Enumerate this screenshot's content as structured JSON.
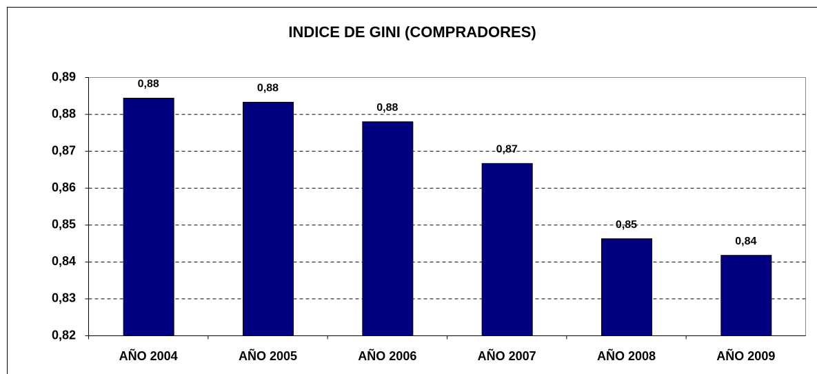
{
  "chart_data": {
    "type": "bar",
    "title": "INDICE DE GINI (COMPRADORES)",
    "categories": [
      "AÑO 2004",
      "AÑO 2005",
      "AÑO 2006",
      "AÑO 2007",
      "AÑO 2008",
      "AÑO 2009"
    ],
    "values": [
      0.8844,
      0.8833,
      0.878,
      0.8667,
      0.8463,
      0.8418
    ],
    "value_labels": [
      "0,88",
      "0,88",
      "0,88",
      "0,87",
      "0,85",
      "0,84"
    ],
    "color": "#000080",
    "ylim": [
      0.82,
      0.89
    ],
    "yticks": [
      {
        "value": 0.82,
        "label": "0,82"
      },
      {
        "value": 0.83,
        "label": "0,83"
      },
      {
        "value": 0.84,
        "label": "0,84"
      },
      {
        "value": 0.85,
        "label": "0,85"
      },
      {
        "value": 0.86,
        "label": "0,86"
      },
      {
        "value": 0.87,
        "label": "0,87"
      },
      {
        "value": 0.88,
        "label": "0,88"
      },
      {
        "value": 0.89,
        "label": "0,89"
      }
    ],
    "grid": true
  }
}
